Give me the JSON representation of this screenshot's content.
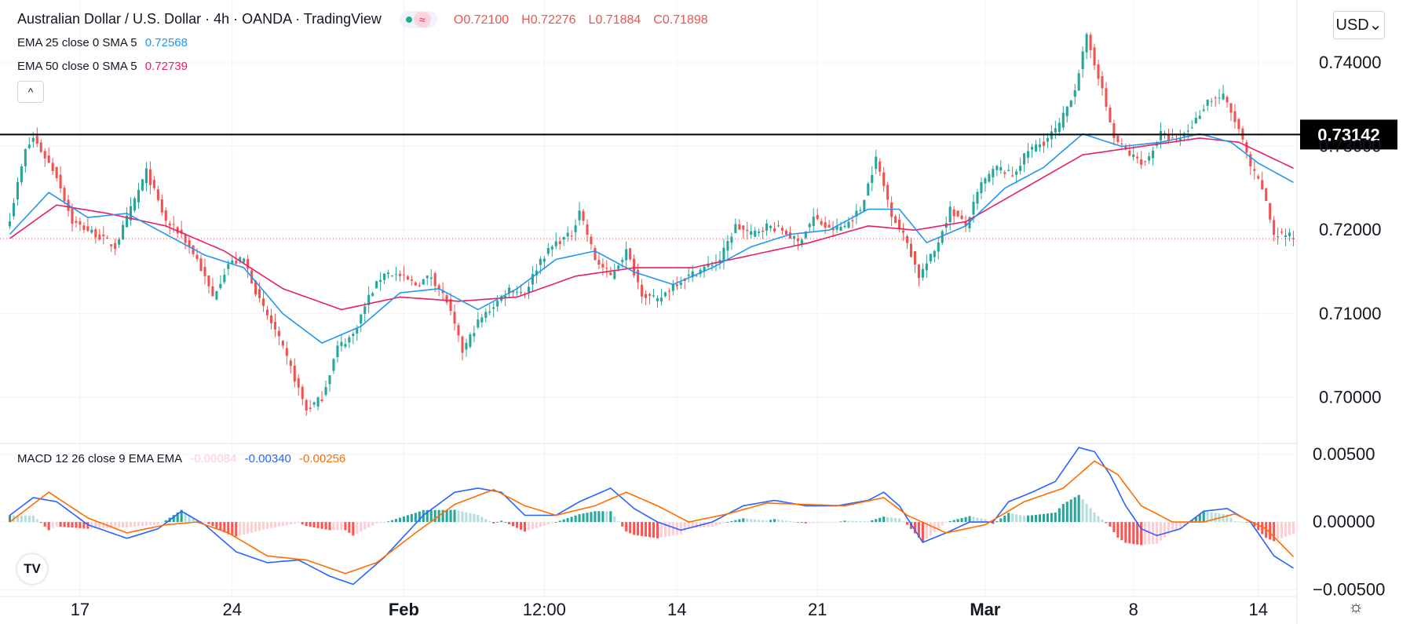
{
  "header": {
    "symbol_title": "Australian Dollar / U.S. Dollar · 4h · OANDA · TradingView",
    "ohlc": {
      "open": "O0.72100",
      "high": "H0.72276",
      "low": "L0.71884",
      "close": "C0.71898"
    },
    "ema25_label": "EMA 25 close 0 SMA 5",
    "ema25_value": "0.72568",
    "ema50_label": "EMA 50 close 0 SMA 5",
    "ema50_value": "0.72739",
    "collapse_glyph": "^",
    "status_icon": "wave-icon",
    "status_glyph": "≈"
  },
  "currency_button": "USD⌄",
  "logo_text": "TV",
  "settings_glyph": "☼",
  "colors": {
    "up": "#26a69a",
    "down": "#ef5350",
    "ema25": "#2196f3",
    "ema50": "#e91e63",
    "macd": "#2962ff",
    "signal": "#ff6d00",
    "hist_up_strong": "#26a69a",
    "hist_up_weak": "#b2dfdb",
    "hist_down_strong": "#ff5252",
    "hist_down_weak": "#ffcdd2"
  },
  "chart_data": [
    {
      "type": "candlestick",
      "title": "Australian Dollar / U.S. Dollar, 4h, OANDA",
      "y_axis_ticks": [
        "0.74000",
        "0.73000",
        "0.72000",
        "0.71000",
        "0.70000"
      ],
      "ylim": [
        0.6945,
        0.7475
      ],
      "x_axis_ticks": [
        "17",
        "24",
        "Feb",
        "12:00",
        "14",
        "21",
        "Mar",
        "8",
        "14"
      ],
      "horizontal_line": {
        "value": 0.73142,
        "label": "0.73142"
      },
      "last_price_line": 0.71898,
      "close_path_anchors": [
        [
          0,
          0.7215
        ],
        [
          4,
          0.7295
        ],
        [
          6,
          0.731
        ],
        [
          12,
          0.7265
        ],
        [
          16,
          0.721
        ],
        [
          22,
          0.7195
        ],
        [
          27,
          0.718
        ],
        [
          31,
          0.7225
        ],
        [
          35,
          0.727
        ],
        [
          40,
          0.721
        ],
        [
          44,
          0.7195
        ],
        [
          48,
          0.7165
        ],
        [
          52,
          0.712
        ],
        [
          56,
          0.716
        ],
        [
          60,
          0.7165
        ],
        [
          64,
          0.7115
        ],
        [
          68,
          0.708
        ],
        [
          72,
          0.7035
        ],
        [
          76,
          0.6985
        ],
        [
          80,
          0.7
        ],
        [
          84,
          0.706
        ],
        [
          88,
          0.7075
        ],
        [
          92,
          0.712
        ],
        [
          96,
          0.715
        ],
        [
          100,
          0.7145
        ],
        [
          104,
          0.7135
        ],
        [
          108,
          0.7145
        ],
        [
          112,
          0.7115
        ],
        [
          116,
          0.7055
        ],
        [
          120,
          0.709
        ],
        [
          124,
          0.711
        ],
        [
          128,
          0.713
        ],
        [
          132,
          0.7125
        ],
        [
          136,
          0.7165
        ],
        [
          140,
          0.7185
        ],
        [
          144,
          0.7195
        ],
        [
          146,
          0.7225
        ],
        [
          150,
          0.7165
        ],
        [
          154,
          0.7145
        ],
        [
          158,
          0.7175
        ],
        [
          162,
          0.7125
        ],
        [
          166,
          0.7115
        ],
        [
          170,
          0.7135
        ],
        [
          174,
          0.7145
        ],
        [
          178,
          0.7155
        ],
        [
          182,
          0.7165
        ],
        [
          186,
          0.7205
        ],
        [
          190,
          0.7195
        ],
        [
          194,
          0.7205
        ],
        [
          198,
          0.72
        ],
        [
          202,
          0.7185
        ],
        [
          206,
          0.7215
        ],
        [
          210,
          0.72
        ],
        [
          214,
          0.7205
        ],
        [
          218,
          0.7225
        ],
        [
          222,
          0.7285
        ],
        [
          226,
          0.722
        ],
        [
          230,
          0.7185
        ],
        [
          233,
          0.7145
        ],
        [
          237,
          0.7175
        ],
        [
          241,
          0.7225
        ],
        [
          245,
          0.7205
        ],
        [
          249,
          0.7255
        ],
        [
          253,
          0.7275
        ],
        [
          257,
          0.7265
        ],
        [
          261,
          0.7295
        ],
        [
          265,
          0.7305
        ],
        [
          269,
          0.7325
        ],
        [
          273,
          0.737
        ],
        [
          276,
          0.743
        ],
        [
          279,
          0.7385
        ],
        [
          283,
          0.731
        ],
        [
          287,
          0.729
        ],
        [
          291,
          0.728
        ],
        [
          295,
          0.7315
        ],
        [
          299,
          0.7305
        ],
        [
          303,
          0.7325
        ],
        [
          307,
          0.7355
        ],
        [
          311,
          0.736
        ],
        [
          315,
          0.732
        ],
        [
          318,
          0.7275
        ],
        [
          321,
          0.725
        ],
        [
          324,
          0.7195
        ],
        [
          327,
          0.7195
        ],
        [
          329,
          0.719
        ]
      ],
      "ema25_anchors": [
        [
          0,
          0.7195
        ],
        [
          10,
          0.7245
        ],
        [
          20,
          0.7215
        ],
        [
          30,
          0.722
        ],
        [
          40,
          0.7195
        ],
        [
          50,
          0.717
        ],
        [
          60,
          0.7155
        ],
        [
          70,
          0.71
        ],
        [
          80,
          0.7065
        ],
        [
          90,
          0.7085
        ],
        [
          100,
          0.7125
        ],
        [
          110,
          0.713
        ],
        [
          120,
          0.7105
        ],
        [
          130,
          0.713
        ],
        [
          140,
          0.7165
        ],
        [
          150,
          0.7175
        ],
        [
          160,
          0.715
        ],
        [
          170,
          0.7135
        ],
        [
          180,
          0.7155
        ],
        [
          190,
          0.718
        ],
        [
          200,
          0.7195
        ],
        [
          210,
          0.72
        ],
        [
          220,
          0.7225
        ],
        [
          228,
          0.7225
        ],
        [
          235,
          0.7185
        ],
        [
          245,
          0.7205
        ],
        [
          255,
          0.725
        ],
        [
          265,
          0.7275
        ],
        [
          275,
          0.7315
        ],
        [
          285,
          0.73
        ],
        [
          295,
          0.7305
        ],
        [
          305,
          0.7315
        ],
        [
          313,
          0.7305
        ],
        [
          320,
          0.728
        ],
        [
          329,
          0.7257
        ]
      ],
      "ema50_anchors": [
        [
          0,
          0.719
        ],
        [
          12,
          0.723
        ],
        [
          25,
          0.722
        ],
        [
          40,
          0.7205
        ],
        [
          55,
          0.7175
        ],
        [
          70,
          0.713
        ],
        [
          85,
          0.7105
        ],
        [
          100,
          0.712
        ],
        [
          115,
          0.7115
        ],
        [
          130,
          0.712
        ],
        [
          145,
          0.7145
        ],
        [
          160,
          0.7155
        ],
        [
          175,
          0.7155
        ],
        [
          190,
          0.717
        ],
        [
          205,
          0.7185
        ],
        [
          220,
          0.7205
        ],
        [
          232,
          0.72
        ],
        [
          245,
          0.721
        ],
        [
          260,
          0.725
        ],
        [
          275,
          0.729
        ],
        [
          290,
          0.73
        ],
        [
          305,
          0.731
        ],
        [
          315,
          0.7305
        ],
        [
          329,
          0.7274
        ]
      ]
    },
    {
      "type": "macd",
      "title": "MACD 12 26 close 9 EMA EMA",
      "legend_values": {
        "histogram": "-0.00084",
        "macd": "-0.00340",
        "signal": "-0.00256"
      },
      "y_axis_ticks": [
        "0.00500",
        "0.00000",
        "−0.00500"
      ],
      "ylim": [
        -0.0055,
        0.0058
      ],
      "macd_anchors": [
        [
          0,
          0.0005
        ],
        [
          6,
          0.0018
        ],
        [
          12,
          0.0015
        ],
        [
          20,
          -0.0002
        ],
        [
          30,
          -0.0012
        ],
        [
          38,
          -0.0005
        ],
        [
          44,
          0.0008
        ],
        [
          50,
          -0.0002
        ],
        [
          58,
          -0.0022
        ],
        [
          66,
          -0.003
        ],
        [
          74,
          -0.0028
        ],
        [
          82,
          -0.004
        ],
        [
          88,
          -0.0046
        ],
        [
          96,
          -0.0026
        ],
        [
          106,
          0.0005
        ],
        [
          114,
          0.0022
        ],
        [
          120,
          0.0025
        ],
        [
          126,
          0.0022
        ],
        [
          132,
          0.0005
        ],
        [
          140,
          0.0005
        ],
        [
          146,
          0.0015
        ],
        [
          154,
          0.0025
        ],
        [
          160,
          0.001
        ],
        [
          166,
          0.0
        ],
        [
          172,
          -0.0006
        ],
        [
          180,
          0.0
        ],
        [
          188,
          0.0012
        ],
        [
          196,
          0.0016
        ],
        [
          204,
          0.0012
        ],
        [
          212,
          0.0012
        ],
        [
          220,
          0.0016
        ],
        [
          224,
          0.0022
        ],
        [
          228,
          0.0012
        ],
        [
          234,
          -0.0015
        ],
        [
          240,
          -0.0008
        ],
        [
          246,
          0.0
        ],
        [
          252,
          0.0
        ],
        [
          256,
          0.0015
        ],
        [
          262,
          0.0022
        ],
        [
          268,
          0.003
        ],
        [
          274,
          0.0055
        ],
        [
          278,
          0.0052
        ],
        [
          282,
          0.0035
        ],
        [
          286,
          0.0012
        ],
        [
          290,
          -0.0005
        ],
        [
          294,
          -0.001
        ],
        [
          300,
          -0.0005
        ],
        [
          306,
          0.0008
        ],
        [
          312,
          0.001
        ],
        [
          318,
          0.0
        ],
        [
          324,
          -0.0025
        ],
        [
          329,
          -0.0034
        ]
      ],
      "signal_anchors": [
        [
          0,
          0.0
        ],
        [
          10,
          0.0022
        ],
        [
          20,
          0.0003
        ],
        [
          30,
          -0.0008
        ],
        [
          40,
          -0.0002
        ],
        [
          48,
          0.0
        ],
        [
          56,
          -0.0008
        ],
        [
          66,
          -0.0025
        ],
        [
          76,
          -0.0028
        ],
        [
          86,
          -0.0038
        ],
        [
          94,
          -0.003
        ],
        [
          104,
          -0.0008
        ],
        [
          114,
          0.0013
        ],
        [
          124,
          0.0024
        ],
        [
          132,
          0.0012
        ],
        [
          140,
          0.0005
        ],
        [
          150,
          0.0012
        ],
        [
          158,
          0.0022
        ],
        [
          166,
          0.0012
        ],
        [
          174,
          0.0
        ],
        [
          184,
          0.0006
        ],
        [
          194,
          0.0014
        ],
        [
          204,
          0.0013
        ],
        [
          214,
          0.0012
        ],
        [
          224,
          0.0018
        ],
        [
          230,
          0.0005
        ],
        [
          240,
          -0.0008
        ],
        [
          250,
          -0.0002
        ],
        [
          260,
          0.0015
        ],
        [
          270,
          0.0025
        ],
        [
          278,
          0.0045
        ],
        [
          284,
          0.0035
        ],
        [
          290,
          0.0012
        ],
        [
          298,
          0.0
        ],
        [
          306,
          0.0
        ],
        [
          314,
          0.0006
        ],
        [
          322,
          -0.0005
        ],
        [
          329,
          -0.00256
        ]
      ]
    }
  ]
}
